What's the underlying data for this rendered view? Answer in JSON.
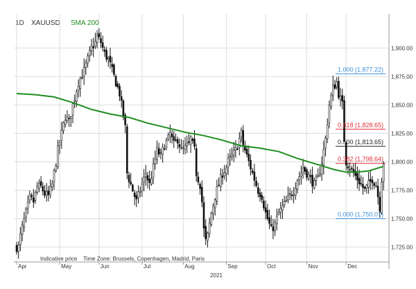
{
  "header": {
    "interval": "1D",
    "symbol": "XAUUSD",
    "indicator": "SMA 200"
  },
  "footer": {
    "note": "Indicative price",
    "timezone": "Time Zone: Brussels, Copenhagen, Madrid, Paris",
    "year_label": "2021"
  },
  "colors": {
    "candles": "#111111",
    "sma": "#1e8c1e",
    "fib_blue": "#3d8fd6",
    "fib_red": "#e0303a",
    "fib_black": "#222222",
    "grid": "#dddddd"
  },
  "chart_data": {
    "type": "candlestick",
    "x_axis": {
      "tick_labels": [
        "Apr",
        "May",
        "Jun",
        "Jul",
        "Aug",
        "Sep",
        "Oct",
        "Nov",
        "Dec"
      ],
      "year": "2021"
    },
    "y_axis": {
      "ticks": [
        1725,
        1750,
        1775,
        1800,
        1825,
        1850,
        1875,
        1900
      ],
      "tick_labels": [
        "1,725.00",
        "1,750.00",
        "1,775.00",
        "1,800.00",
        "1,825.00",
        "1,850.00",
        "1,875.00",
        "1,900.00"
      ],
      "ylim": [
        1712,
        1930
      ]
    },
    "price_path_close": [
      [
        1,
        1725
      ],
      [
        2,
        1735
      ],
      [
        3,
        1742
      ],
      [
        5,
        1755
      ],
      [
        7,
        1768
      ],
      [
        9,
        1765
      ],
      [
        11,
        1778
      ],
      [
        13,
        1778
      ],
      [
        15,
        1772
      ],
      [
        17,
        1770
      ],
      [
        19,
        1780
      ],
      [
        21,
        1800
      ],
      [
        22,
        1810
      ],
      [
        24,
        1825
      ],
      [
        26,
        1840
      ],
      [
        28,
        1835
      ],
      [
        30,
        1850
      ],
      [
        33,
        1870
      ],
      [
        36,
        1880
      ],
      [
        38,
        1890
      ],
      [
        40,
        1900
      ],
      [
        42,
        1905
      ],
      [
        43,
        1910
      ],
      [
        45,
        1905
      ],
      [
        47,
        1895
      ],
      [
        49,
        1890
      ],
      [
        51,
        1880
      ],
      [
        53,
        1870
      ],
      [
        55,
        1860
      ],
      [
        56,
        1850
      ],
      [
        57,
        1840
      ],
      [
        58,
        1830
      ],
      [
        59,
        1790
      ],
      [
        61,
        1780
      ],
      [
        63,
        1770
      ],
      [
        64,
        1765
      ],
      [
        66,
        1775
      ],
      [
        68,
        1785
      ],
      [
        69,
        1790
      ],
      [
        71,
        1780
      ],
      [
        73,
        1795
      ],
      [
        75,
        1810
      ],
      [
        77,
        1805
      ],
      [
        79,
        1815
      ],
      [
        81,
        1820
      ],
      [
        82,
        1825
      ],
      [
        84,
        1815
      ],
      [
        86,
        1820
      ],
      [
        88,
        1810
      ],
      [
        90,
        1812
      ],
      [
        92,
        1815
      ],
      [
        93,
        1820
      ],
      [
        95,
        1810
      ],
      [
        96,
        1790
      ],
      [
        98,
        1780
      ],
      [
        99,
        1765
      ],
      [
        100,
        1740
      ],
      [
        101,
        1730
      ],
      [
        102,
        1735
      ],
      [
        104,
        1755
      ],
      [
        106,
        1770
      ],
      [
        108,
        1780
      ],
      [
        110,
        1790
      ],
      [
        112,
        1795
      ],
      [
        113,
        1800
      ],
      [
        115,
        1805
      ],
      [
        117,
        1810
      ],
      [
        119,
        1820
      ],
      [
        120,
        1825
      ],
      [
        121,
        1815
      ],
      [
        123,
        1805
      ],
      [
        125,
        1795
      ],
      [
        126,
        1790
      ],
      [
        127,
        1785
      ],
      [
        129,
        1775
      ],
      [
        131,
        1770
      ],
      [
        133,
        1755
      ],
      [
        135,
        1745
      ],
      [
        136,
        1740
      ],
      [
        138,
        1745
      ],
      [
        140,
        1755
      ],
      [
        142,
        1760
      ],
      [
        144,
        1765
      ],
      [
        146,
        1770
      ],
      [
        148,
        1775
      ],
      [
        150,
        1785
      ],
      [
        152,
        1790
      ],
      [
        153,
        1795
      ],
      [
        155,
        1790
      ],
      [
        157,
        1785
      ],
      [
        159,
        1780
      ],
      [
        161,
        1785
      ],
      [
        163,
        1800
      ],
      [
        165,
        1820
      ],
      [
        166,
        1835
      ],
      [
        167,
        1850
      ],
      [
        169,
        1865
      ],
      [
        171,
        1870
      ],
      [
        172,
        1860
      ],
      [
        174,
        1850
      ],
      [
        175,
        1820
      ],
      [
        176,
        1800
      ],
      [
        178,
        1795
      ],
      [
        180,
        1790
      ],
      [
        182,
        1785
      ],
      [
        184,
        1780
      ],
      [
        186,
        1775
      ],
      [
        188,
        1780
      ],
      [
        190,
        1785
      ],
      [
        192,
        1780
      ],
      [
        193,
        1770
      ],
      [
        194,
        1760
      ],
      [
        195,
        1785
      ],
      [
        196,
        1800
      ]
    ],
    "sma200_path": [
      [
        0,
        1860
      ],
      [
        10,
        1859
      ],
      [
        20,
        1857
      ],
      [
        30,
        1852
      ],
      [
        40,
        1846
      ],
      [
        50,
        1842
      ],
      [
        60,
        1839
      ],
      [
        70,
        1834
      ],
      [
        80,
        1830
      ],
      [
        90,
        1826
      ],
      [
        100,
        1823
      ],
      [
        110,
        1819
      ],
      [
        120,
        1814
      ],
      [
        130,
        1812
      ],
      [
        140,
        1809
      ],
      [
        150,
        1803
      ],
      [
        160,
        1798
      ],
      [
        170,
        1793
      ],
      [
        176,
        1791
      ],
      [
        182,
        1791
      ],
      [
        188,
        1792
      ],
      [
        194,
        1795
      ],
      [
        196,
        1796
      ]
    ],
    "fibonacci_levels": [
      {
        "label": "1.000 (1,877.22)",
        "value": 1877.22,
        "color": "#3d8fd6"
      },
      {
        "label": "0.618 (1,828.65)",
        "value": 1828.65,
        "color": "#e0303a"
      },
      {
        "label": "0.500 (1,813.65)",
        "value": 1813.65,
        "color": "#222222"
      },
      {
        "label": "0.382 (1,798.64)",
        "value": 1798.64,
        "color": "#e0303a"
      },
      {
        "label": "0.000 (1,750.07)",
        "value": 1750.07,
        "color": "#3d8fd6"
      }
    ],
    "series": [
      {
        "name": "XAUUSD"
      },
      {
        "name": "SMA 200"
      }
    ]
  }
}
